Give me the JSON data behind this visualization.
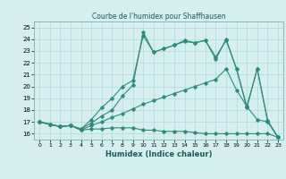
{
  "title": "Courbe de l'humidex pour Shaffhausen",
  "xlabel": "Humidex (Indice chaleur)",
  "bg_color": "#d5efef",
  "grid_color": "#b0d8d8",
  "line_color": "#2e8b7a",
  "xlim": [
    -0.5,
    23.5
  ],
  "ylim": [
    15.5,
    25.5
  ],
  "xticks": [
    0,
    1,
    2,
    3,
    4,
    5,
    6,
    7,
    8,
    9,
    10,
    11,
    12,
    13,
    14,
    15,
    16,
    17,
    18,
    19,
    20,
    21,
    22,
    23
  ],
  "yticks": [
    16,
    17,
    18,
    19,
    20,
    21,
    22,
    23,
    24,
    25
  ],
  "line1_x": [
    0,
    1,
    2,
    3,
    4,
    5,
    6,
    7,
    8,
    9,
    10,
    11,
    12,
    13,
    14,
    15,
    16,
    17,
    18,
    19,
    20,
    21,
    22,
    23
  ],
  "line1_y": [
    17.0,
    16.8,
    16.6,
    16.7,
    16.3,
    16.4,
    16.4,
    16.5,
    16.5,
    16.5,
    16.3,
    16.3,
    16.2,
    16.2,
    16.2,
    16.1,
    16.0,
    16.0,
    16.0,
    16.0,
    16.0,
    16.0,
    16.0,
    15.7
  ],
  "line2_x": [
    0,
    1,
    2,
    3,
    4,
    5,
    6,
    7,
    8,
    9,
    10,
    11,
    12,
    13,
    14,
    15,
    16,
    17,
    18,
    19,
    20,
    21,
    22,
    23
  ],
  "line2_y": [
    17.0,
    16.8,
    16.6,
    16.7,
    16.3,
    16.7,
    17.0,
    17.4,
    17.7,
    18.1,
    18.5,
    18.8,
    19.1,
    19.4,
    19.7,
    20.0,
    20.3,
    20.6,
    21.5,
    19.7,
    18.3,
    21.5,
    17.1,
    15.7
  ],
  "line3_x": [
    0,
    1,
    2,
    3,
    4,
    5,
    6,
    7,
    8,
    9,
    10,
    11,
    12,
    13,
    14,
    15,
    16,
    17,
    18,
    19,
    20,
    21,
    22,
    23
  ],
  "line3_y": [
    17.0,
    16.8,
    16.6,
    16.7,
    16.4,
    16.9,
    17.5,
    18.0,
    19.2,
    20.1,
    24.6,
    22.9,
    23.2,
    23.5,
    23.9,
    23.7,
    23.9,
    22.3,
    24.0,
    21.5,
    18.3,
    17.2,
    17.0,
    15.7
  ],
  "line4_x": [
    0,
    1,
    2,
    3,
    4,
    5,
    6,
    7,
    8,
    9,
    10,
    11,
    12,
    13,
    14,
    15,
    16,
    17,
    18,
    19,
    20,
    21,
    22,
    23
  ],
  "line4_y": [
    17.0,
    16.8,
    16.6,
    16.7,
    16.4,
    17.2,
    18.2,
    19.0,
    20.0,
    20.5,
    24.3,
    22.9,
    23.2,
    23.5,
    23.8,
    23.7,
    23.9,
    22.5,
    23.9,
    21.5,
    18.2,
    21.5,
    17.1,
    15.7
  ]
}
